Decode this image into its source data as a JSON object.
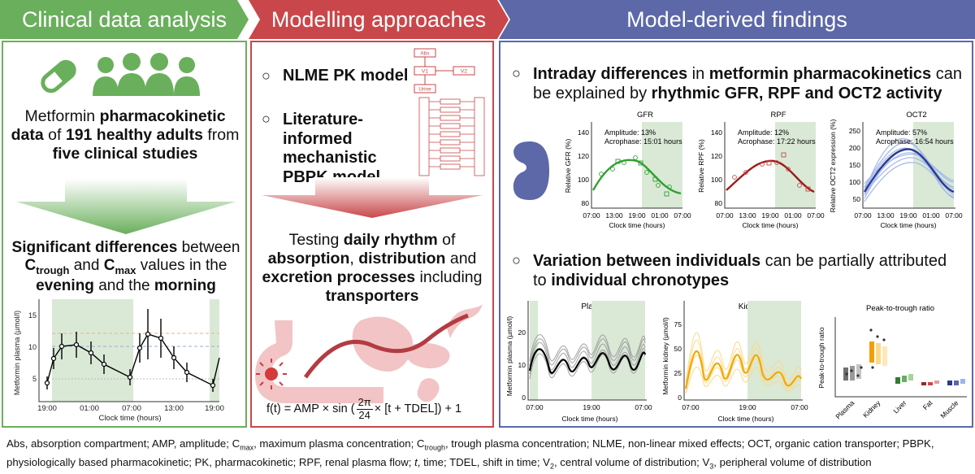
{
  "headers": {
    "clinical": "Clinical data analysis",
    "modelling": "Modelling approaches",
    "findings": "Model-derived findings"
  },
  "colors": {
    "green": "#6aaf5c",
    "red": "#c9474a",
    "blue": "#5c68a8"
  },
  "clinical": {
    "intro": [
      "Metformin ",
      "pharmacokinetic data",
      " of ",
      "191 healthy adults",
      " from ",
      "five clinical studies"
    ],
    "result": [
      "Significant differences",
      " between ",
      "C",
      "trough",
      " and ",
      "C",
      "max",
      " values in the ",
      "evening",
      " and the ",
      "morning"
    ],
    "plot": {
      "ylabel": "Metformin plasma (µmol/l)",
      "xlabel": "Clock time (hours)",
      "yticks": [
        "5",
        "10",
        "15"
      ],
      "xticks": [
        "19:00",
        "01:00",
        "07:00",
        "13:00",
        "19:00"
      ]
    }
  },
  "modelling": {
    "bullet1": "NLME PK model",
    "bullet2": "Literature-informed mechanistic PBPK model",
    "diagram_labels": [
      "Abs",
      "V1",
      "V2",
      "Urine"
    ],
    "testing": [
      "Testing ",
      "daily rhythm",
      " of ",
      "absorption",
      ", ",
      "distribution",
      " and ",
      "excretion processes",
      " including ",
      "transporters"
    ],
    "formula": {
      "lhs": "f(t) = AMP × sin (",
      "num": "2π",
      "den": "24",
      "rhs": " × [t + TDEL]) + 1"
    }
  },
  "findings": {
    "bullet1": [
      "Intraday differences",
      " in ",
      "metformin pharmacokinetics",
      " can be explained by ",
      "rhythmic GFR, RPF and OCT2 activity"
    ],
    "bullet2": [
      "Variation between individuals",
      " can be partially attributed to ",
      "individual chronotypes"
    ],
    "gfr": {
      "title": "GFR",
      "ylabel": "Relative GFR (%)",
      "amp": "Amplitude: 13%",
      "acro": "Acrophase: 15:01 hours",
      "yticks": [
        "80",
        "100",
        "120",
        "140"
      ]
    },
    "rpf": {
      "title": "RPF",
      "ylabel": "Relative RPF (%)",
      "amp": "Amplitude: 12%",
      "acro": "Acrophase: 17:22 hours",
      "yticks": [
        "80",
        "100",
        "120",
        "140"
      ]
    },
    "oct2": {
      "title": "OCT2",
      "ylabel": "Relative OCT2 expression (%)",
      "amp": "Amplitude: 57%",
      "acro": "Acrophase: 16:54 hours",
      "yticks": [
        "50",
        "100",
        "150",
        "200",
        "250"
      ]
    },
    "mini_xticks": [
      "07:00",
      "13:00",
      "19:00",
      "01:00",
      "07:00"
    ],
    "mini_xlabel": "Clock time (hours)",
    "plasma": {
      "title": "Plasma",
      "ylabel": "Metformin plasma (µmol/l)",
      "yticks": [
        "0",
        "10",
        "20"
      ],
      "xticks": [
        "07:00",
        "19:00",
        "07:00"
      ],
      "xlabel": "Clock time (hours)"
    },
    "kidney": {
      "title": "Kidney",
      "ylabel": "Metformin kidney (µmol/l)",
      "yticks": [
        "0",
        "25",
        "50",
        "75"
      ],
      "xticks": [
        "07:00",
        "19:00",
        "07:00"
      ],
      "xlabel": "Clock time (hours)"
    },
    "ratio": {
      "title": "Peak-to-trough ratio",
      "ylabel": "Peak-to-trough ratio",
      "categories": [
        "Plasma",
        "Kidney",
        "Liver",
        "Fat",
        "Muscle"
      ]
    }
  },
  "footer": {
    "parts": [
      "Abs, absorption compartment; AMP, amplitude; C",
      "max",
      ", maximum plasma concentration; C",
      "trough",
      ", trough plasma concentration; NLME, non-linear mixed effects; OCT, organic cation transporter; PBPK, physiologically based pharmacokinetic; PK, pharmacokinetic; RPF, renal plasma flow; ",
      "t",
      ", time; TDEL, shift in time; V",
      "2",
      ", central volume of distribution; V",
      "3",
      ", peripheral volume of distribution"
    ]
  }
}
